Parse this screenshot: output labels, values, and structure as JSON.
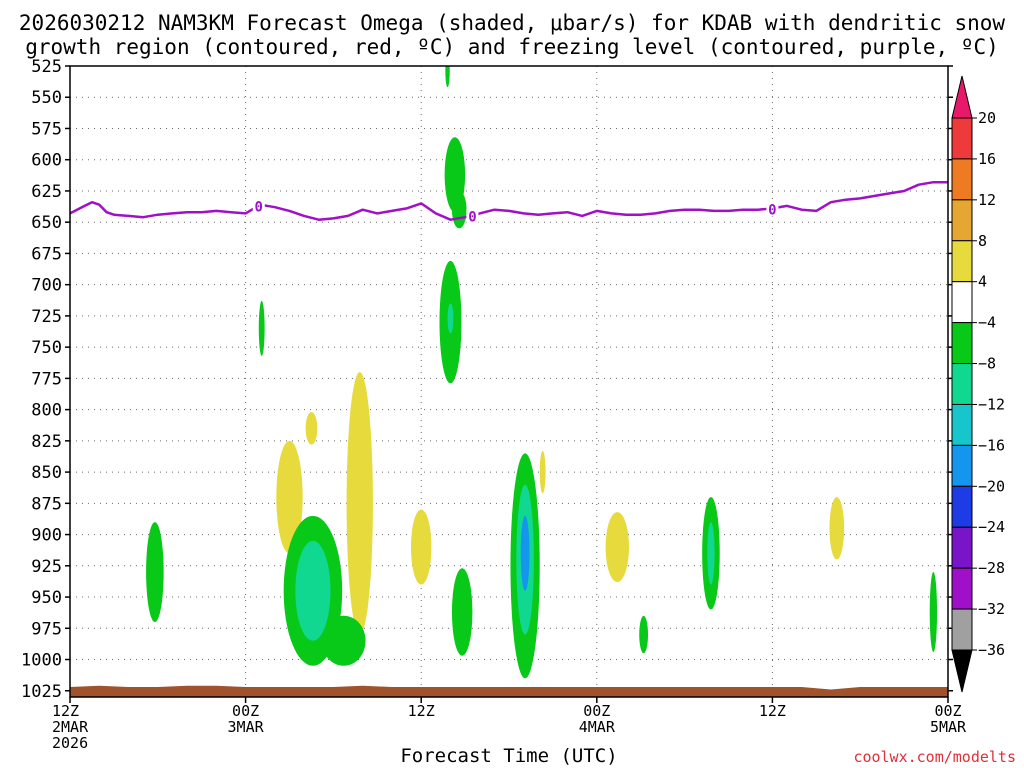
{
  "title_line1": "2026030212 NAM3KM Forecast Omega (shaded, μbar/s) for KDAB with dendritic snow",
  "title_line2": "growth region (contoured, red, ºC) and freezing level (contoured, purple, ºC)",
  "xlabel": "Forecast Time (UTC)",
  "credit": "coolwx.com/modelts",
  "chart_data": {
    "type": "heatmap",
    "title": "2026030212 NAM3KM Forecast Omega (shaded, μbar/s) for KDAB with dendritic snow growth region (contoured, red, ºC) and freezing level (contoured, purple, ºC)",
    "xlabel": "Forecast Time (UTC)",
    "ylabel": "",
    "x_units": "forecast hours from 2026-03-02 12Z",
    "xlim": [
      0,
      60
    ],
    "ylim": [
      1030,
      525
    ],
    "grid": true,
    "yticks": [
      525,
      550,
      575,
      600,
      625,
      650,
      675,
      700,
      725,
      750,
      775,
      800,
      825,
      850,
      875,
      900,
      925,
      950,
      975,
      1000,
      1025
    ],
    "xticks": [
      {
        "h": 0,
        "l1": "12Z",
        "l2": "2MAR",
        "l3": "2026"
      },
      {
        "h": 12,
        "l1": "00Z",
        "l2": "3MAR",
        "l3": ""
      },
      {
        "h": 24,
        "l1": "12Z",
        "l2": "",
        "l3": ""
      },
      {
        "h": 36,
        "l1": "00Z",
        "l2": "4MAR",
        "l3": ""
      },
      {
        "h": 48,
        "l1": "12Z",
        "l2": "",
        "l3": ""
      },
      {
        "h": 60,
        "l1": "00Z",
        "l2": "5MAR",
        "l3": ""
      }
    ],
    "colorbar": {
      "labels": [
        "20",
        "16",
        "12",
        "8",
        "4",
        "−4",
        "−8",
        "−12",
        "−16",
        "−20",
        "−24",
        "−28",
        "−32",
        "−36"
      ],
      "colors": [
        "#e8186a",
        "#ee3a3a",
        "#ee7a22",
        "#e6a632",
        "#e6da3c",
        "#ffffff",
        "#08c818",
        "#10d890",
        "#16c6cc",
        "#1496ee",
        "#1e3ce6",
        "#7a14c8",
        "#a010c8",
        "#a0a0a0",
        "#000000"
      ]
    },
    "freezing_level": {
      "color": "#a010c8",
      "label": "0",
      "label_hours": [
        12.9,
        27.5,
        48.0
      ],
      "x": [
        0,
        1,
        1.5,
        2,
        2.5,
        3,
        4,
        5,
        6,
        7,
        8,
        9,
        10,
        11,
        12,
        13,
        14,
        15,
        16,
        17,
        18,
        19,
        20,
        21,
        22,
        23,
        24,
        25,
        26,
        27,
        28,
        29,
        30,
        31,
        32,
        33,
        34,
        35,
        36,
        37,
        38,
        39,
        40,
        41,
        42,
        43,
        44,
        45,
        46,
        47,
        48,
        49,
        50,
        51,
        52,
        53,
        54,
        55,
        56,
        57,
        58,
        59,
        60
      ],
      "y": [
        643,
        637,
        634,
        636,
        642,
        644,
        645,
        646,
        644,
        643,
        642,
        642,
        641,
        642,
        643,
        636,
        638,
        641,
        645,
        648,
        647,
        645,
        640,
        643,
        641,
        639,
        635,
        643,
        648,
        646,
        643,
        640,
        641,
        643,
        644,
        643,
        642,
        645,
        641,
        643,
        644,
        644,
        643,
        641,
        640,
        640,
        641,
        641,
        640,
        640,
        639,
        637,
        640,
        641,
        634,
        632,
        631,
        629,
        627,
        625,
        620,
        618,
        618
      ]
    },
    "omega_cells": [
      {
        "hour": 25.8,
        "p": 529,
        "dh": 0.15,
        "dp": 13,
        "value": -5
      },
      {
        "hour": 26.3,
        "p": 612,
        "dh": 0.7,
        "dp": 30,
        "value": -5
      },
      {
        "hour": 26.6,
        "p": 640,
        "dh": 0.5,
        "dp": 15,
        "value": -5
      },
      {
        "hour": 26.0,
        "p": 730,
        "dh": 0.75,
        "dp": 49,
        "value": -6
      },
      {
        "hour": 26.0,
        "p": 727,
        "dh": 0.2,
        "dp": 12,
        "value": -10
      },
      {
        "hour": 13.1,
        "p": 735,
        "dh": 0.2,
        "dp": 22,
        "value": -5
      },
      {
        "hour": 15.0,
        "p": 870,
        "dh": 0.9,
        "dp": 45,
        "value": 5
      },
      {
        "hour": 16.5,
        "p": 815,
        "dh": 0.4,
        "dp": 13,
        "value": 5
      },
      {
        "hour": 19.8,
        "p": 875,
        "dh": 0.9,
        "dp": 105,
        "value": 5
      },
      {
        "hour": 24.0,
        "p": 910,
        "dh": 0.7,
        "dp": 30,
        "value": 5
      },
      {
        "hour": 32.3,
        "p": 850,
        "dh": 0.2,
        "dp": 17,
        "value": 5
      },
      {
        "hour": 37.4,
        "p": 910,
        "dh": 0.8,
        "dp": 28,
        "value": 5
      },
      {
        "hour": 52.4,
        "p": 895,
        "dh": 0.5,
        "dp": 25,
        "value": 5
      },
      {
        "hour": 5.8,
        "p": 930,
        "dh": 0.6,
        "dp": 40,
        "value": -5
      },
      {
        "hour": 16.6,
        "p": 945,
        "dh": 2.0,
        "dp": 60,
        "value": -6
      },
      {
        "hour": 16.6,
        "p": 945,
        "dh": 1.2,
        "dp": 40,
        "value": -10
      },
      {
        "hour": 18.7,
        "p": 985,
        "dh": 1.5,
        "dp": 20,
        "value": -5
      },
      {
        "hour": 26.8,
        "p": 962,
        "dh": 0.7,
        "dp": 35,
        "value": -5
      },
      {
        "hour": 31.1,
        "p": 925,
        "dh": 1.0,
        "dp": 90,
        "value": -6
      },
      {
        "hour": 31.1,
        "p": 920,
        "dh": 0.6,
        "dp": 60,
        "value": -12
      },
      {
        "hour": 31.1,
        "p": 915,
        "dh": 0.3,
        "dp": 30,
        "value": -20
      },
      {
        "hour": 39.2,
        "p": 980,
        "dh": 0.3,
        "dp": 15,
        "value": -5
      },
      {
        "hour": 43.8,
        "p": 915,
        "dh": 0.6,
        "dp": 45,
        "value": -6
      },
      {
        "hour": 43.8,
        "p": 915,
        "dh": 0.25,
        "dp": 25,
        "value": -12
      },
      {
        "hour": 59.0,
        "p": 962,
        "dh": 0.25,
        "dp": 32,
        "value": -5
      }
    ],
    "terrain": {
      "color": "#a0522d",
      "x": [
        0,
        2,
        4,
        6,
        8,
        10,
        12,
        14,
        16,
        18,
        20,
        22,
        24,
        26,
        28,
        30,
        32,
        34,
        36,
        38,
        40,
        42,
        44,
        46,
        48,
        50,
        52,
        54,
        56,
        58,
        60
      ],
      "y": [
        1022,
        1021,
        1022,
        1022,
        1021,
        1021,
        1022,
        1022,
        1022,
        1022,
        1021,
        1022,
        1022,
        1022,
        1022,
        1022,
        1022,
        1022,
        1022,
        1022,
        1022,
        1022,
        1022,
        1022,
        1022,
        1022,
        1024,
        1022,
        1022,
        1022,
        1022
      ]
    }
  }
}
